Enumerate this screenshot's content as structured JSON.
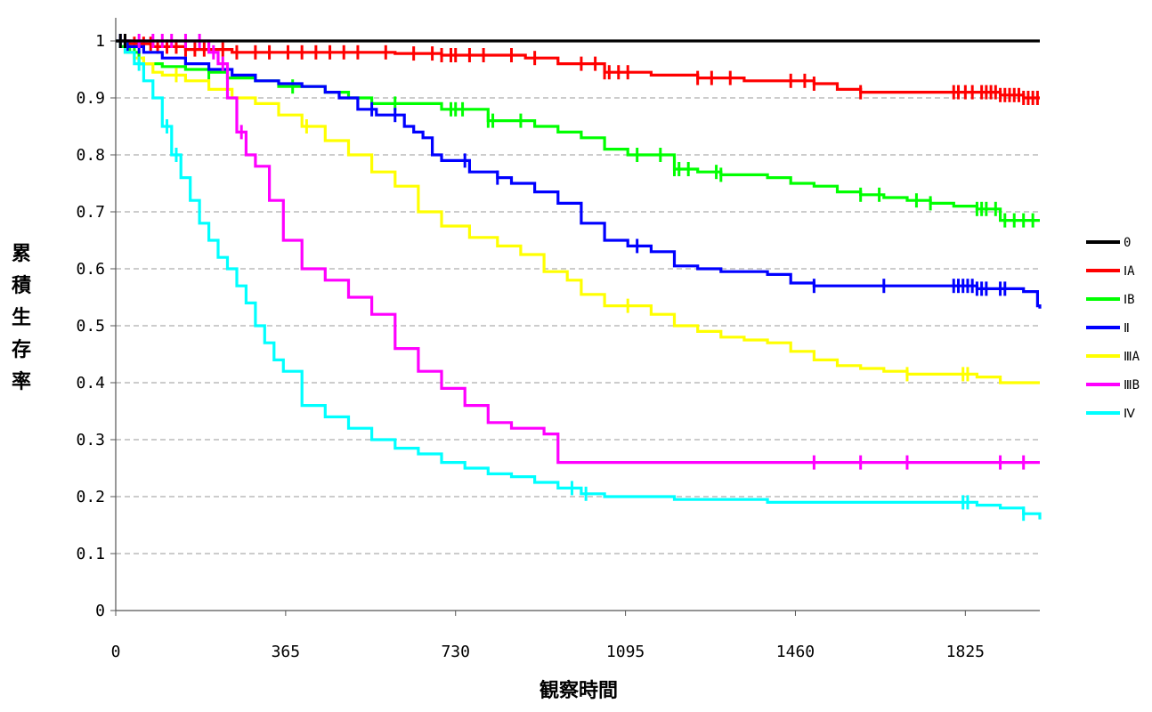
{
  "chart_data": {
    "type": "line",
    "title": "",
    "xlabel": "観察時間",
    "ylabel": "累積生存率",
    "xlim": [
      0,
      1985
    ],
    "ylim": [
      0,
      1
    ],
    "xticks": [
      0,
      365,
      730,
      1095,
      1460,
      1825
    ],
    "yticks": [
      0,
      0.1,
      0.2,
      0.3,
      0.4,
      0.5,
      0.6,
      0.7,
      0.8,
      0.9,
      1
    ],
    "ytick_labels": [
      "0",
      "0.1",
      "0.2",
      "0.3",
      "0.4",
      "0.5",
      "0.6",
      "0.7",
      "0.8",
      "0.9",
      "1"
    ],
    "grid": "horizontal dashed",
    "legend_position": "right",
    "series": [
      {
        "name": "0",
        "color": "#000000",
        "x": [
          0,
          1985
        ],
        "y": [
          1,
          1
        ],
        "censor_x": [
          10,
          20
        ]
      },
      {
        "name": "ⅠA",
        "color": "#ff0000",
        "x": [
          0,
          30,
          80,
          150,
          250,
          400,
          500,
          600,
          700,
          820,
          880,
          950,
          1050,
          1150,
          1250,
          1350,
          1450,
          1500,
          1550,
          1600,
          1700,
          1800,
          1850,
          1900,
          1950,
          1985
        ],
        "y": [
          1,
          0.995,
          0.99,
          0.985,
          0.98,
          0.98,
          0.98,
          0.978,
          0.975,
          0.975,
          0.97,
          0.96,
          0.945,
          0.94,
          0.935,
          0.93,
          0.93,
          0.925,
          0.915,
          0.91,
          0.91,
          0.91,
          0.91,
          0.905,
          0.9,
          0.9
        ],
        "censor_x": [
          20,
          40,
          60,
          75,
          90,
          110,
          130,
          150,
          170,
          190,
          230,
          260,
          300,
          330,
          370,
          400,
          430,
          460,
          490,
          520,
          580,
          640,
          680,
          700,
          720,
          730,
          760,
          790,
          850,
          900,
          1000,
          1030,
          1050,
          1060,
          1080,
          1100,
          1250,
          1280,
          1320,
          1450,
          1480,
          1500,
          1600,
          1800,
          1810,
          1825,
          1840,
          1860,
          1870,
          1880,
          1890,
          1900,
          1910,
          1920,
          1930,
          1940,
          1950,
          1960,
          1970,
          1980
        ]
      },
      {
        "name": "ⅠB",
        "color": "#00ff00",
        "x": [
          0,
          10,
          30,
          50,
          100,
          150,
          200,
          240,
          300,
          350,
          400,
          450,
          500,
          550,
          600,
          650,
          700,
          800,
          900,
          950,
          1000,
          1050,
          1100,
          1200,
          1250,
          1300,
          1350,
          1400,
          1450,
          1500,
          1550,
          1600,
          1650,
          1700,
          1750,
          1800,
          1850,
          1900,
          1985
        ],
        "y": [
          1,
          0.99,
          0.98,
          0.96,
          0.955,
          0.95,
          0.945,
          0.935,
          0.93,
          0.92,
          0.92,
          0.91,
          0.9,
          0.89,
          0.89,
          0.89,
          0.88,
          0.86,
          0.85,
          0.84,
          0.83,
          0.81,
          0.8,
          0.775,
          0.77,
          0.765,
          0.765,
          0.76,
          0.75,
          0.745,
          0.735,
          0.73,
          0.725,
          0.72,
          0.715,
          0.71,
          0.705,
          0.685,
          0.685
        ],
        "censor_x": [
          40,
          60,
          200,
          380,
          600,
          720,
          730,
          745,
          800,
          810,
          870,
          1120,
          1170,
          1200,
          1210,
          1230,
          1290,
          1300,
          1600,
          1640,
          1720,
          1750,
          1850,
          1860,
          1870,
          1890,
          1910,
          1930,
          1950,
          1970
        ]
      },
      {
        "name": "Ⅱ",
        "color": "#0000ff",
        "x": [
          0,
          20,
          60,
          100,
          150,
          200,
          250,
          300,
          350,
          400,
          450,
          480,
          520,
          560,
          620,
          640,
          660,
          680,
          700,
          760,
          820,
          850,
          900,
          950,
          1000,
          1050,
          1100,
          1150,
          1200,
          1250,
          1300,
          1400,
          1450,
          1500,
          1600,
          1700,
          1800,
          1850,
          1950,
          1980,
          1985
        ],
        "y": [
          1,
          0.99,
          0.98,
          0.97,
          0.96,
          0.95,
          0.94,
          0.93,
          0.925,
          0.92,
          0.91,
          0.9,
          0.88,
          0.87,
          0.85,
          0.84,
          0.83,
          0.8,
          0.79,
          0.77,
          0.76,
          0.75,
          0.735,
          0.715,
          0.68,
          0.65,
          0.64,
          0.63,
          0.605,
          0.6,
          0.595,
          0.59,
          0.575,
          0.57,
          0.57,
          0.57,
          0.57,
          0.565,
          0.56,
          0.535,
          0.53
        ],
        "censor_x": [
          10,
          25,
          50,
          550,
          600,
          750,
          820,
          1120,
          1500,
          1650,
          1800,
          1810,
          1820,
          1830,
          1840,
          1850,
          1860,
          1870,
          1900,
          1910
        ]
      },
      {
        "name": "ⅢA",
        "color": "#ffff00",
        "x": [
          0,
          20,
          40,
          60,
          80,
          100,
          150,
          200,
          250,
          300,
          350,
          400,
          450,
          500,
          550,
          600,
          650,
          700,
          760,
          820,
          870,
          920,
          970,
          1000,
          1050,
          1150,
          1200,
          1250,
          1300,
          1350,
          1400,
          1450,
          1500,
          1550,
          1600,
          1650,
          1700,
          1800,
          1850,
          1900,
          1985
        ],
        "y": [
          1,
          0.98,
          0.97,
          0.96,
          0.945,
          0.94,
          0.93,
          0.915,
          0.9,
          0.89,
          0.87,
          0.85,
          0.825,
          0.8,
          0.77,
          0.745,
          0.7,
          0.675,
          0.655,
          0.64,
          0.625,
          0.595,
          0.58,
          0.555,
          0.535,
          0.52,
          0.5,
          0.49,
          0.48,
          0.475,
          0.47,
          0.455,
          0.44,
          0.43,
          0.425,
          0.42,
          0.415,
          0.415,
          0.41,
          0.4,
          0.4
        ],
        "censor_x": [
          130,
          410,
          1100,
          1700,
          1820,
          1830
        ]
      },
      {
        "name": "ⅢB",
        "color": "#ff00ff",
        "x": [
          0,
          200,
          220,
          240,
          260,
          280,
          300,
          330,
          360,
          400,
          450,
          500,
          550,
          600,
          650,
          700,
          750,
          800,
          850,
          920,
          950,
          1000,
          1985
        ],
        "y": [
          1,
          0.98,
          0.96,
          0.9,
          0.84,
          0.8,
          0.78,
          0.72,
          0.65,
          0.6,
          0.58,
          0.55,
          0.52,
          0.46,
          0.42,
          0.39,
          0.36,
          0.33,
          0.32,
          0.31,
          0.26,
          0.26,
          0.26
        ],
        "censor_x": [
          50,
          80,
          100,
          120,
          150,
          180,
          210,
          230,
          270,
          1500,
          1600,
          1700,
          1900,
          1950
        ]
      },
      {
        "name": "Ⅳ",
        "color": "#00ffff",
        "x": [
          0,
          20,
          40,
          60,
          80,
          100,
          120,
          140,
          160,
          180,
          200,
          220,
          240,
          260,
          280,
          300,
          320,
          340,
          360,
          400,
          450,
          500,
          550,
          600,
          650,
          700,
          750,
          800,
          850,
          900,
          950,
          1000,
          1050,
          1100,
          1200,
          1300,
          1400,
          1500,
          1600,
          1700,
          1800,
          1850,
          1900,
          1950,
          1985
        ],
        "y": [
          1,
          0.98,
          0.96,
          0.93,
          0.9,
          0.85,
          0.8,
          0.76,
          0.72,
          0.68,
          0.65,
          0.62,
          0.6,
          0.57,
          0.54,
          0.5,
          0.47,
          0.44,
          0.42,
          0.36,
          0.34,
          0.32,
          0.3,
          0.285,
          0.275,
          0.26,
          0.25,
          0.24,
          0.235,
          0.225,
          0.215,
          0.205,
          0.2,
          0.2,
          0.195,
          0.195,
          0.19,
          0.19,
          0.19,
          0.19,
          0.19,
          0.185,
          0.18,
          0.17,
          0.16
        ],
        "censor_x": [
          50,
          110,
          130,
          980,
          1010,
          1820,
          1830,
          1950
        ]
      }
    ]
  }
}
